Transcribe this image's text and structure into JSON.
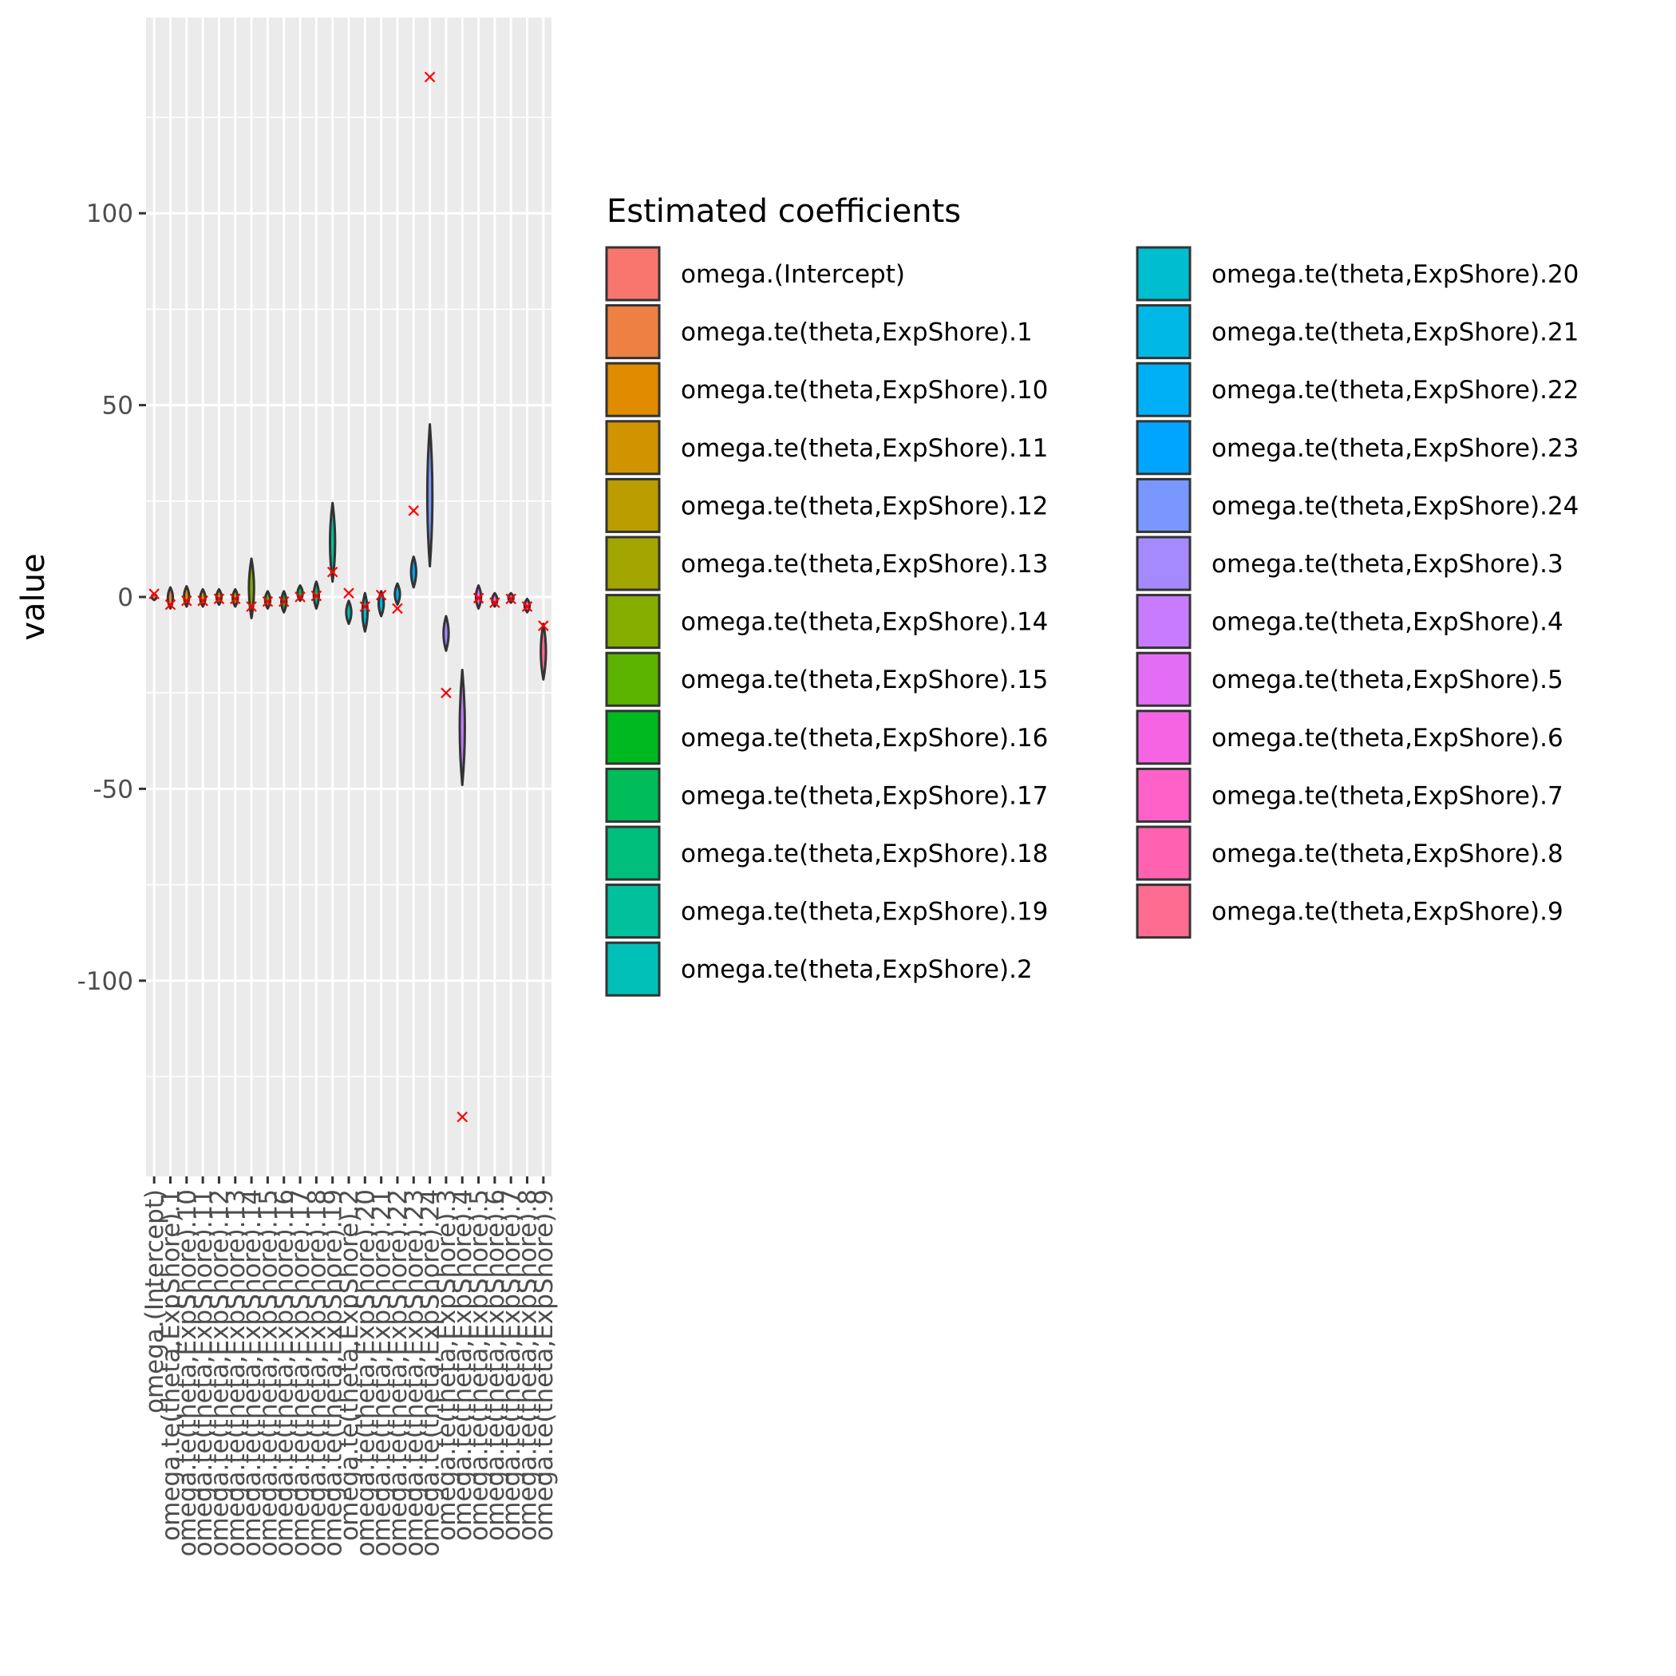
{
  "chart_data": {
    "type": "violin",
    "ylabel": "value",
    "xlabel": "",
    "ylim": [
      -151,
      151
    ],
    "yticks": [
      -100,
      -50,
      0,
      50,
      100
    ],
    "grid": true,
    "legend_title": "Estimated coefficients",
    "legend_position": "right",
    "categories": [
      "omega.(Intercept)",
      "omega.te(theta,ExpShore).1",
      "omega.te(theta,ExpShore).10",
      "omega.te(theta,ExpShore).11",
      "omega.te(theta,ExpShore).12",
      "omega.te(theta,ExpShore).13",
      "omega.te(theta,ExpShore).14",
      "omega.te(theta,ExpShore).15",
      "omega.te(theta,ExpShore).16",
      "omega.te(theta,ExpShore).17",
      "omega.te(theta,ExpShore).18",
      "omega.te(theta,ExpShore).19",
      "omega.te(theta,ExpShore).2",
      "omega.te(theta,ExpShore).20",
      "omega.te(theta,ExpShore).21",
      "omega.te(theta,ExpShore).22",
      "omega.te(theta,ExpShore).23",
      "omega.te(theta,ExpShore).24",
      "omega.te(theta,ExpShore).3",
      "omega.te(theta,ExpShore).4",
      "omega.te(theta,ExpShore).5",
      "omega.te(theta,ExpShore).6",
      "omega.te(theta,ExpShore).7",
      "omega.te(theta,ExpShore).8",
      "omega.te(theta,ExpShore).9"
    ],
    "colors": [
      "#F8766D",
      "#EE8044",
      "#E08B00",
      "#CF9400",
      "#BB9D00",
      "#A3A500",
      "#85AD00",
      "#5BB300",
      "#00B81F",
      "#00BC59",
      "#00BF7D",
      "#00C19C",
      "#00C0B8",
      "#00BDD0",
      "#00B8E5",
      "#00B0F6",
      "#00A5FF",
      "#7997FF",
      "#A58AFF",
      "#C77CFF",
      "#E46DF6",
      "#F565E3",
      "#FF61C9",
      "#FF63B0",
      "#FF6C91"
    ],
    "violin_range": [
      [
        -0.8,
        0.8
      ],
      [
        -3,
        2.5
      ],
      [
        -2.5,
        2.8
      ],
      [
        -2.5,
        2
      ],
      [
        -2,
        2
      ],
      [
        -2.5,
        2
      ],
      [
        -5.5,
        10
      ],
      [
        -3,
        1.5
      ],
      [
        -4,
        1.5
      ],
      [
        -1,
        3
      ],
      [
        -3,
        4
      ],
      [
        4,
        24.5
      ],
      [
        -7,
        -1
      ],
      [
        -9,
        1
      ],
      [
        -5,
        1.5
      ],
      [
        -2,
        3.5
      ],
      [
        2.5,
        10.5
      ],
      [
        8,
        45
      ],
      [
        -14,
        -5
      ],
      [
        -49,
        -19
      ],
      [
        -3,
        3
      ],
      [
        -2.5,
        1
      ],
      [
        -1.5,
        1
      ],
      [
        -4,
        -0.5
      ],
      [
        -21.5,
        -7
      ]
    ],
    "estimates": [
      0.8,
      -2,
      -1,
      -1,
      -0.5,
      -0.5,
      -2.5,
      -1.2,
      -1.2,
      0,
      0.3,
      6.5,
      1,
      -2.5,
      0.5,
      -3,
      22.5,
      135.5,
      -25,
      -135.5,
      -0.3,
      -1.5,
      -0.5,
      -2.5,
      -7.5
    ]
  }
}
